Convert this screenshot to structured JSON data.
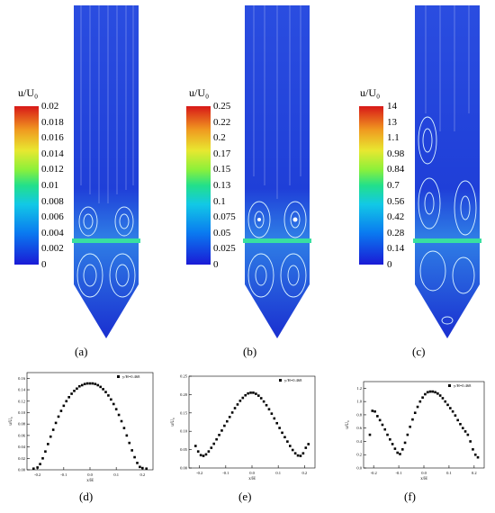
{
  "colorbars": [
    {
      "title": "u/U₀",
      "ticks": [
        "0.02",
        "0.018",
        "0.016",
        "0.014",
        "0.012",
        "0.01",
        "0.008",
        "0.006",
        "0.004",
        "0.002",
        "0"
      ]
    },
    {
      "title": "u/U₀",
      "ticks": [
        "0.25",
        "0.22",
        "0.2",
        "0.17",
        "0.15",
        "0.13",
        "0.1",
        "0.075",
        "0.05",
        "0.025",
        "0"
      ]
    },
    {
      "title": "u/U₀",
      "ticks": [
        "14",
        "13",
        "1.1",
        "0.98",
        "0.84",
        "0.7",
        "0.56",
        "0.42",
        "0.28",
        "0.14",
        "0"
      ]
    }
  ],
  "panel_labels": [
    "(a)",
    "(b)",
    "(c)",
    "(d)",
    "(e)",
    "(f)"
  ],
  "chart_data": [
    {
      "type": "scatter",
      "legend": "y/H=0.468",
      "xlabel": "x/H",
      "ylabel": "u/U₀",
      "xlim": [
        -0.24,
        0.24
      ],
      "ylim": [
        0,
        0.17
      ],
      "xticks": [
        "-0.2",
        "-0.1",
        "0.0",
        "0.1",
        "0.2"
      ],
      "yticks": [
        "0.00",
        "0.02",
        "0.04",
        "0.06",
        "0.08",
        "0.10",
        "0.12",
        "0.14",
        "0.16"
      ],
      "x": [
        -0.215,
        -0.2,
        -0.19,
        -0.18,
        -0.17,
        -0.16,
        -0.15,
        -0.14,
        -0.13,
        -0.12,
        -0.11,
        -0.1,
        -0.09,
        -0.08,
        -0.07,
        -0.06,
        -0.05,
        -0.04,
        -0.03,
        -0.02,
        -0.01,
        0.0,
        0.01,
        0.02,
        0.03,
        0.04,
        0.05,
        0.06,
        0.07,
        0.08,
        0.09,
        0.1,
        0.11,
        0.12,
        0.13,
        0.14,
        0.15,
        0.16,
        0.17,
        0.18,
        0.19,
        0.2,
        0.215
      ],
      "y": [
        0.002,
        0.004,
        0.01,
        0.02,
        0.032,
        0.045,
        0.058,
        0.07,
        0.082,
        0.093,
        0.103,
        0.112,
        0.12,
        0.127,
        0.133,
        0.138,
        0.142,
        0.146,
        0.148,
        0.15,
        0.151,
        0.151,
        0.151,
        0.15,
        0.148,
        0.145,
        0.141,
        0.136,
        0.13,
        0.123,
        0.115,
        0.106,
        0.096,
        0.085,
        0.073,
        0.06,
        0.047,
        0.034,
        0.022,
        0.012,
        0.005,
        0.003,
        0.002
      ]
    },
    {
      "type": "scatter",
      "legend": "y/H=0.468",
      "xlabel": "x/H",
      "ylabel": "u/U₀",
      "xlim": [
        -0.24,
        0.24
      ],
      "ylim": [
        0,
        0.25
      ],
      "xticks": [
        "-0.2",
        "-0.1",
        "0.0",
        "0.1",
        "0.2"
      ],
      "yticks": [
        "0.00",
        "0.05",
        "0.10",
        "0.15",
        "0.20",
        "0.25"
      ],
      "x": [
        -0.215,
        -0.205,
        -0.195,
        -0.185,
        -0.175,
        -0.165,
        -0.155,
        -0.145,
        -0.135,
        -0.125,
        -0.115,
        -0.105,
        -0.095,
        -0.085,
        -0.075,
        -0.065,
        -0.055,
        -0.045,
        -0.035,
        -0.025,
        -0.015,
        -0.005,
        0.005,
        0.015,
        0.025,
        0.035,
        0.045,
        0.055,
        0.065,
        0.075,
        0.085,
        0.095,
        0.105,
        0.115,
        0.125,
        0.135,
        0.145,
        0.155,
        0.165,
        0.175,
        0.185,
        0.195,
        0.205,
        0.215
      ],
      "y": [
        0.06,
        0.045,
        0.035,
        0.033,
        0.037,
        0.045,
        0.055,
        0.066,
        0.078,
        0.09,
        0.102,
        0.115,
        0.127,
        0.139,
        0.151,
        0.163,
        0.173,
        0.183,
        0.191,
        0.198,
        0.203,
        0.205,
        0.205,
        0.202,
        0.197,
        0.19,
        0.181,
        0.171,
        0.16,
        0.148,
        0.135,
        0.122,
        0.109,
        0.096,
        0.084,
        0.072,
        0.06,
        0.049,
        0.04,
        0.034,
        0.033,
        0.04,
        0.055,
        0.065
      ]
    },
    {
      "type": "scatter",
      "legend": "y/H=0.468",
      "xlabel": "x/H",
      "ylabel": "u/U₀",
      "xlim": [
        -0.24,
        0.24
      ],
      "ylim": [
        0,
        1.3
      ],
      "xticks": [
        "-0.2",
        "-0.1",
        "0.0",
        "0.1",
        "0.2"
      ],
      "yticks": [
        "0.0",
        "0.2",
        "0.4",
        "0.6",
        "0.8",
        "1.0",
        "1.2"
      ],
      "x": [
        -0.215,
        -0.205,
        -0.195,
        -0.185,
        -0.175,
        -0.165,
        -0.155,
        -0.145,
        -0.135,
        -0.125,
        -0.115,
        -0.105,
        -0.095,
        -0.085,
        -0.075,
        -0.065,
        -0.055,
        -0.045,
        -0.035,
        -0.025,
        -0.015,
        -0.005,
        0.005,
        0.015,
        0.025,
        0.035,
        0.045,
        0.055,
        0.065,
        0.075,
        0.085,
        0.095,
        0.105,
        0.115,
        0.125,
        0.135,
        0.145,
        0.155,
        0.165,
        0.175,
        0.185,
        0.195,
        0.205,
        0.215
      ],
      "y": [
        0.5,
        0.86,
        0.85,
        0.78,
        0.72,
        0.65,
        0.58,
        0.5,
        0.43,
        0.36,
        0.29,
        0.23,
        0.21,
        0.28,
        0.38,
        0.5,
        0.62,
        0.73,
        0.83,
        0.92,
        1.0,
        1.06,
        1.11,
        1.14,
        1.15,
        1.15,
        1.14,
        1.12,
        1.09,
        1.05,
        1.0,
        0.95,
        0.9,
        0.85,
        0.79,
        0.72,
        0.66,
        0.6,
        0.55,
        0.5,
        0.4,
        0.28,
        0.2,
        0.16
      ]
    }
  ]
}
